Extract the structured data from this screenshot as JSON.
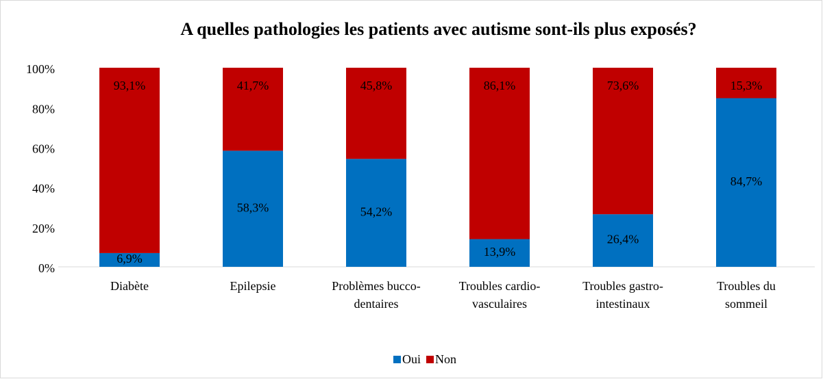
{
  "chart_data": {
    "type": "stacked_bar",
    "title": "A quelles pathologies les patients avec autisme sont-ils plus exposés?",
    "categories": [
      [
        "Diabète"
      ],
      [
        "Epilepsie"
      ],
      [
        "Problèmes bucco-",
        "dentaires"
      ],
      [
        "Troubles cardio-",
        "vasculaires"
      ],
      [
        "Troubles gastro-",
        "intestinaux"
      ],
      [
        "Troubles du",
        "sommeil"
      ]
    ],
    "series": [
      {
        "name": "Oui",
        "color": "#0070c0",
        "values": [
          6.9,
          58.3,
          54.2,
          13.9,
          26.4,
          84.7
        ],
        "value_labels": [
          "6,9%",
          "58,3%",
          "54,2%",
          "13,9%",
          "26,4%",
          "84,7%"
        ]
      },
      {
        "name": "Non",
        "color": "#c00000",
        "values": [
          93.1,
          41.7,
          45.8,
          86.1,
          73.6,
          15.3
        ],
        "value_labels": [
          "93,1%",
          "41,7%",
          "45,8%",
          "86,1%",
          "73,6%",
          "15,3%"
        ]
      }
    ],
    "ylim": [
      0,
      100
    ],
    "yticks": [
      {
        "value": 0,
        "label": "0%"
      },
      {
        "value": 20,
        "label": "20%"
      },
      {
        "value": 40,
        "label": "40%"
      },
      {
        "value": 60,
        "label": "60%"
      },
      {
        "value": 80,
        "label": "80%"
      },
      {
        "value": 100,
        "label": "100%"
      }
    ],
    "legend": "bottom"
  }
}
